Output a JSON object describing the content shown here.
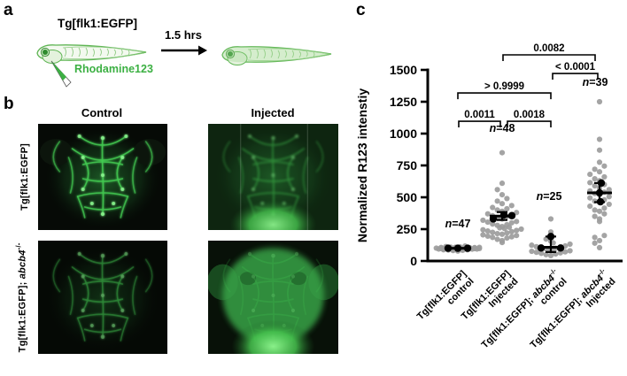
{
  "figure_labels": {
    "a": "a",
    "b": "b",
    "c": "c"
  },
  "panel_a": {
    "transgene_title": "Tg[flk1:EGFP]",
    "duration_label": "1.5 hrs",
    "injection_label": "Rhodamine123",
    "accent_green": "#3cb043"
  },
  "panel_b": {
    "column_headers": [
      "Control",
      "Injected"
    ],
    "row1_label": "Tg[flk1:EGFP]",
    "row2_label": {
      "base": "Tg[flk1:EGFP]; ",
      "gene": "abcb4",
      "sup": "-/-"
    }
  },
  "chart_data": {
    "type": "scatter",
    "title": "",
    "ylabel": "Normalized R123 intenstiy",
    "ylim": [
      0,
      1500
    ],
    "yticks": [
      0,
      250,
      500,
      750,
      1000,
      1250,
      1500
    ],
    "grid": false,
    "point_color": "#9c9c9c",
    "summary_color": "#000000",
    "groups": [
      {
        "n": 47,
        "n_label_y": 265,
        "mean": 100,
        "err_low": 94,
        "err_high": 106,
        "replicates": [
          {
            "dx": -11,
            "v": 100
          },
          {
            "dx": 0,
            "v": 100
          },
          {
            "dx": 11,
            "v": 100
          }
        ],
        "label_lines": [
          [
            {
              "text": "Tg[flk1:EGFP]"
            }
          ],
          [
            {
              "text": "control"
            }
          ]
        ],
        "points": [
          78,
          82,
          84,
          86,
          88,
          88,
          90,
          90,
          91,
          92,
          92,
          93,
          93,
          94,
          94,
          95,
          95,
          95,
          96,
          96,
          97,
          97,
          98,
          98,
          98,
          99,
          99,
          100,
          100,
          100,
          101,
          101,
          102,
          102,
          103,
          103,
          104,
          104,
          105,
          105,
          106,
          107,
          108,
          109,
          110,
          113,
          117
        ]
      },
      {
        "n": 48,
        "n_label_y": 1015,
        "mean": 352,
        "err_low": 322,
        "err_high": 384,
        "replicates": [
          {
            "dx": -10,
            "v": 330
          },
          {
            "dx": 2,
            "v": 362
          },
          {
            "dx": 11,
            "v": 356
          }
        ],
        "label_lines": [
          [
            {
              "text": "Tg[flk1:EGFP]"
            }
          ],
          [
            {
              "text": "Injected"
            }
          ]
        ],
        "points": [
          145,
          160,
          170,
          180,
          185,
          190,
          195,
          200,
          205,
          210,
          215,
          220,
          225,
          230,
          235,
          240,
          245,
          250,
          255,
          260,
          265,
          270,
          280,
          285,
          290,
          300,
          305,
          310,
          320,
          330,
          340,
          350,
          355,
          360,
          370,
          380,
          390,
          400,
          410,
          420,
          435,
          450,
          470,
          490,
          520,
          560,
          610,
          850
        ]
      },
      {
        "n": 25,
        "n_label_y": 480,
        "mean": 108,
        "err_low": 70,
        "err_high": 192,
        "replicates": [
          {
            "dx": 0,
            "v": 192
          },
          {
            "dx": -11,
            "v": 102
          },
          {
            "dx": 11,
            "v": 102
          }
        ],
        "label_lines": [
          [
            {
              "text": "Tg[flk1:EGFP]; "
            },
            {
              "text": "abcb4",
              "italic": true
            },
            {
              "text": "-/-",
              "sup": true
            }
          ],
          [
            {
              "text": "control"
            }
          ]
        ],
        "points": [
          42,
          50,
          55,
          60,
          64,
          68,
          72,
          76,
          80,
          84,
          88,
          92,
          96,
          100,
          104,
          108,
          112,
          118,
          124,
          132,
          142,
          155,
          172,
          228,
          330
        ]
      },
      {
        "n": 39,
        "n_label_y": 1375,
        "mean": 535,
        "err_low": 462,
        "err_high": 612,
        "replicates": [
          {
            "dx": 2,
            "v": 612
          },
          {
            "dx": 0,
            "v": 535
          },
          {
            "dx": 1,
            "v": 465
          }
        ],
        "label_lines": [
          [
            {
              "text": "Tg[flk1:EGFP]; "
            },
            {
              "text": "abcb4",
              "italic": true
            },
            {
              "text": "-/-",
              "sup": true
            }
          ],
          [
            {
              "text": "Injected"
            }
          ]
        ],
        "points": [
          105,
          140,
          160,
          185,
          200,
          310,
          330,
          350,
          370,
          390,
          400,
          415,
          430,
          445,
          460,
          470,
          480,
          495,
          505,
          520,
          530,
          540,
          550,
          560,
          575,
          590,
          600,
          615,
          630,
          645,
          660,
          680,
          700,
          720,
          745,
          775,
          870,
          955,
          1250
        ]
      }
    ],
    "comparisons": [
      {
        "from": 0,
        "to": 1,
        "p": "0.0011",
        "y": 1097,
        "x1_off": 1,
        "x2_off": -2
      },
      {
        "from": 1,
        "to": 2,
        "p": "0.0018",
        "y": 1097,
        "x1_off": 6,
        "x2_off": 0
      },
      {
        "from": 0,
        "to": 2,
        "p": "> 0.9999",
        "y": 1319,
        "x1_off": 0,
        "x2_off": 0
      },
      {
        "from": 2,
        "to": 3,
        "p": "< 0.0001",
        "y": 1472,
        "x1_off": 2,
        "x2_off": -2
      },
      {
        "from": 1,
        "to": 3,
        "p": "0.0082",
        "y": 1618,
        "x1_off": 1,
        "x2_off": -5
      }
    ]
  }
}
